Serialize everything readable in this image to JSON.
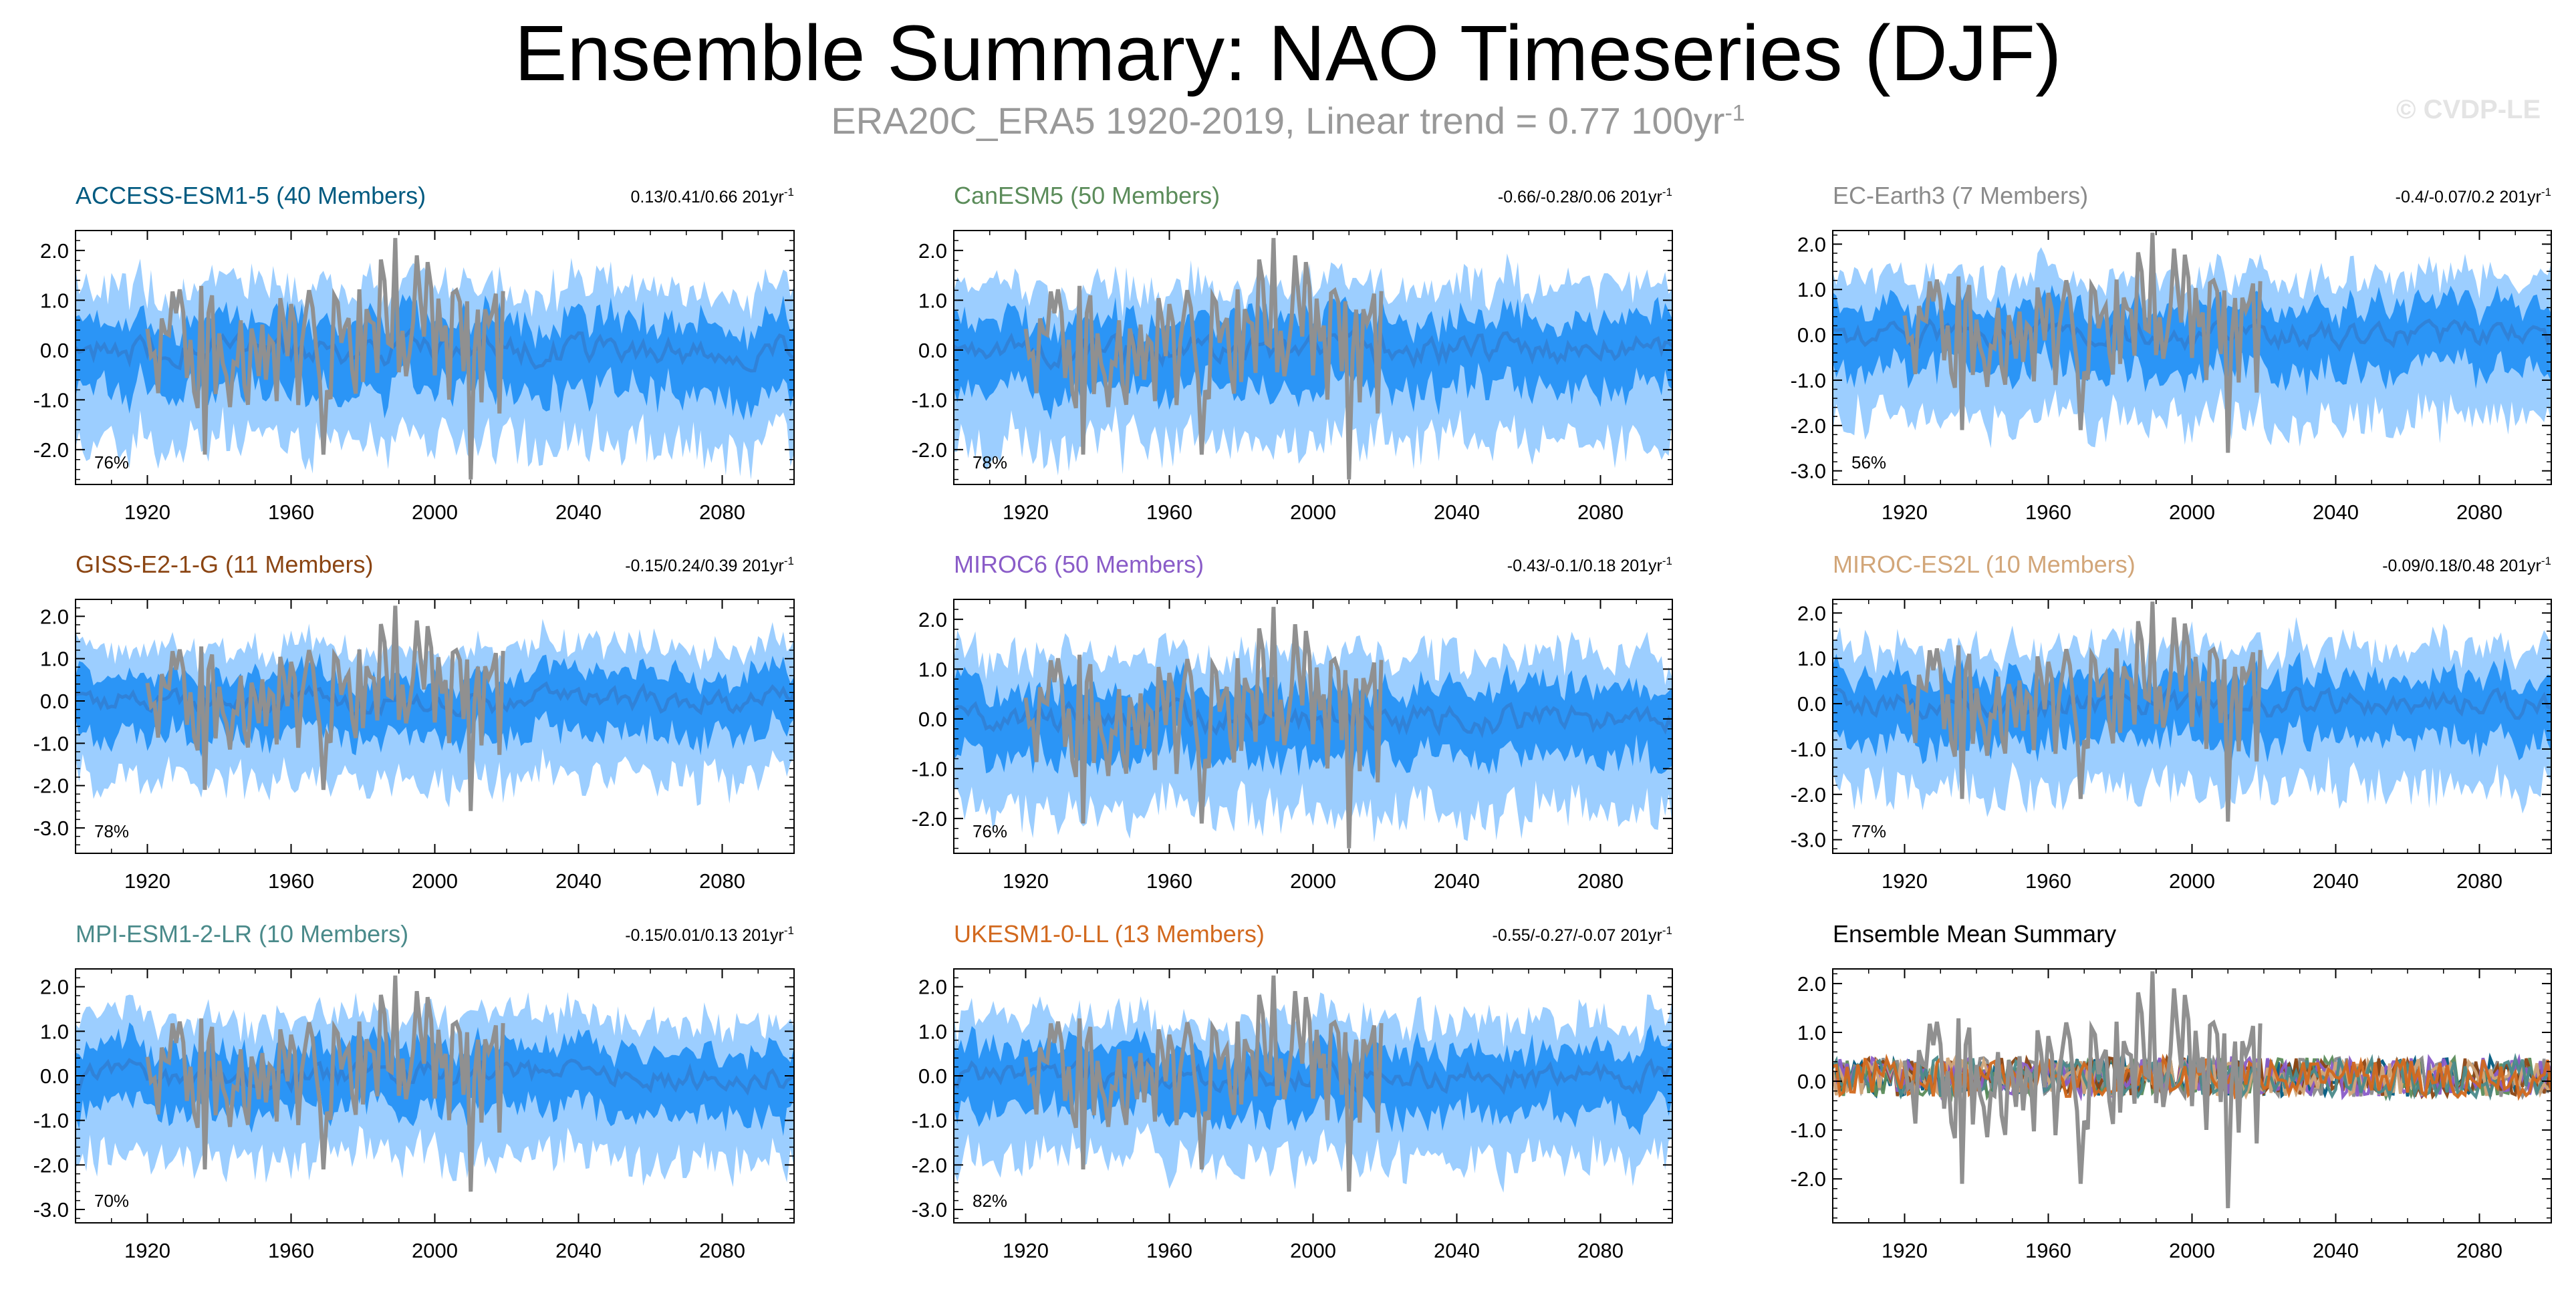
{
  "title": "Ensemble Summary: NAO Timeseries (DJF)",
  "subtitle_main": "ERA20C_ERA5 1920-2019, Linear trend = 0.77 100yr",
  "subtitle_sup": "-1",
  "copyright": "© CVDP-LE",
  "colors": {
    "outer_band": "#9cceff",
    "inner_band": "#2b95f6",
    "ensemble_mean": "#3082d8",
    "observations": "#909090"
  },
  "chart_data": [
    {
      "type": "area",
      "panel": "ACCESS-ESM1-5",
      "title": "ACCESS-ESM1-5 (40 Members)",
      "title_color": "#005a80",
      "stat": "0.13/0.41/0.66 201yr",
      "stat_sup": "-1",
      "percent": "76%",
      "x_range": [
        1900,
        2100
      ],
      "ylim": [
        -2.7,
        2.4
      ],
      "yticks": [
        "2.0",
        "1.0",
        "0.0",
        "-1.0",
        "-2.0"
      ],
      "ytick_values": [
        2,
        1,
        0,
        -1,
        -2
      ],
      "xticks": [
        "1920",
        "1960",
        "2000",
        "2040",
        "2080"
      ],
      "xtick_values": [
        1920,
        1960,
        2000,
        2040,
        2080
      ],
      "series": [
        "outer range",
        "inner range",
        "ensemble mean",
        "observed"
      ]
    },
    {
      "type": "area",
      "panel": "CanESM5",
      "title": "CanESM5 (50 Members)",
      "title_color": "#5b8c5a",
      "stat": "-0.66/-0.28/0.06 201yr",
      "stat_sup": "-1",
      "percent": "78%",
      "x_range": [
        1900,
        2100
      ],
      "ylim": [
        -2.7,
        2.4
      ],
      "yticks": [
        "2.0",
        "1.0",
        "0.0",
        "-1.0",
        "-2.0"
      ],
      "ytick_values": [
        2,
        1,
        0,
        -1,
        -2
      ],
      "xticks": [
        "1920",
        "1960",
        "2000",
        "2040",
        "2080"
      ],
      "xtick_values": [
        1920,
        1960,
        2000,
        2040,
        2080
      ]
    },
    {
      "type": "area",
      "panel": "EC-Earth3",
      "title": "EC-Earth3 (7 Members)",
      "title_color": "#8a8a8a",
      "stat": "-0.4/-0.07/0.2 201yr",
      "stat_sup": "-1",
      "percent": "56%",
      "x_range": [
        1900,
        2100
      ],
      "ylim": [
        -3.3,
        2.3
      ],
      "yticks": [
        "2.0",
        "1.0",
        "0.0",
        "-1.0",
        "-2.0",
        "-3.0"
      ],
      "ytick_values": [
        2,
        1,
        0,
        -1,
        -2,
        -3
      ],
      "xticks": [
        "1920",
        "1960",
        "2000",
        "2040",
        "2080"
      ],
      "xtick_values": [
        1920,
        1960,
        2000,
        2040,
        2080
      ]
    },
    {
      "type": "area",
      "panel": "GISS-E2-1-G",
      "title": "GISS-E2-1-G (11 Members)",
      "title_color": "#8b4513",
      "stat": "-0.15/0.24/0.39 201yr",
      "stat_sup": "-1",
      "percent": "78%",
      "x_range": [
        1900,
        2100
      ],
      "ylim": [
        -3.6,
        2.4
      ],
      "yticks": [
        "2.0",
        "1.0",
        "0.0",
        "-1.0",
        "-2.0",
        "-3.0"
      ],
      "ytick_values": [
        2,
        1,
        0,
        -1,
        -2,
        -3
      ],
      "xticks": [
        "1920",
        "1960",
        "2000",
        "2040",
        "2080"
      ],
      "xtick_values": [
        1920,
        1960,
        2000,
        2040,
        2080
      ]
    },
    {
      "type": "area",
      "panel": "MIROC6",
      "title": "MIROC6 (50 Members)",
      "title_color": "#8a5cc8",
      "stat": "-0.43/-0.1/0.18 201yr",
      "stat_sup": "-1",
      "percent": "76%",
      "x_range": [
        1900,
        2100
      ],
      "ylim": [
        -2.7,
        2.4
      ],
      "yticks": [
        "2.0",
        "1.0",
        "0.0",
        "-1.0",
        "-2.0"
      ],
      "ytick_values": [
        2,
        1,
        0,
        -1,
        -2
      ],
      "xticks": [
        "1920",
        "1960",
        "2000",
        "2040",
        "2080"
      ],
      "xtick_values": [
        1920,
        1960,
        2000,
        2040,
        2080
      ]
    },
    {
      "type": "area",
      "panel": "MIROC-ES2L",
      "title": "MIROC-ES2L (10 Members)",
      "title_color": "#d2a679",
      "stat": "-0.09/0.18/0.48 201yr",
      "stat_sup": "-1",
      "percent": "77%",
      "x_range": [
        1900,
        2100
      ],
      "ylim": [
        -3.3,
        2.3
      ],
      "yticks": [
        "2.0",
        "1.0",
        "0.0",
        "-1.0",
        "-2.0",
        "-3.0"
      ],
      "ytick_values": [
        2,
        1,
        0,
        -1,
        -2,
        -3
      ],
      "xticks": [
        "1920",
        "1960",
        "2000",
        "2040",
        "2080"
      ],
      "xtick_values": [
        1920,
        1960,
        2000,
        2040,
        2080
      ]
    },
    {
      "type": "area",
      "panel": "MPI-ESM1-2-LR",
      "title": "MPI-ESM1-2-LR (10 Members)",
      "title_color": "#4a8a8a",
      "stat": "-0.15/0.01/0.13 201yr",
      "stat_sup": "-1",
      "percent": "70%",
      "x_range": [
        1900,
        2100
      ],
      "ylim": [
        -3.3,
        2.4
      ],
      "yticks": [
        "2.0",
        "1.0",
        "0.0",
        "-1.0",
        "-2.0",
        "-3.0"
      ],
      "ytick_values": [
        2,
        1,
        0,
        -1,
        -2,
        -3
      ],
      "xticks": [
        "1920",
        "1960",
        "2000",
        "2040",
        "2080"
      ],
      "xtick_values": [
        1920,
        1960,
        2000,
        2040,
        2080
      ]
    },
    {
      "type": "area",
      "panel": "UKESM1-0-LL",
      "title": "UKESM1-0-LL (13 Members)",
      "title_color": "#d2691e",
      "stat": "-0.55/-0.27/-0.07 201yr",
      "stat_sup": "-1",
      "percent": "82%",
      "x_range": [
        1900,
        2100
      ],
      "ylim": [
        -3.3,
        2.4
      ],
      "yticks": [
        "2.0",
        "1.0",
        "0.0",
        "-1.0",
        "-2.0",
        "-3.0"
      ],
      "ytick_values": [
        2,
        1,
        0,
        -1,
        -2,
        -3
      ],
      "xticks": [
        "1920",
        "1960",
        "2000",
        "2040",
        "2080"
      ],
      "xtick_values": [
        1920,
        1960,
        2000,
        2040,
        2080
      ]
    },
    {
      "type": "line",
      "panel": "Ensemble Mean Summary",
      "title": "Ensemble Mean Summary",
      "title_color": "#000000",
      "stat": "",
      "stat_sup": "",
      "percent": "",
      "x_range": [
        1900,
        2100
      ],
      "ylim": [
        -2.9,
        2.3
      ],
      "yticks": [
        "2.0",
        "1.0",
        "0.0",
        "-1.0",
        "-2.0"
      ],
      "ytick_values": [
        2,
        1,
        0,
        -1,
        -2
      ],
      "xticks": [
        "1920",
        "1960",
        "2000",
        "2040",
        "2080"
      ],
      "xtick_values": [
        1920,
        1960,
        2000,
        2040,
        2080
      ],
      "model_colors": [
        "#005a80",
        "#5b8c5a",
        "#8a8a8a",
        "#8b4513",
        "#8a5cc8",
        "#d2a679",
        "#4a8a8a",
        "#d2691e"
      ]
    }
  ]
}
